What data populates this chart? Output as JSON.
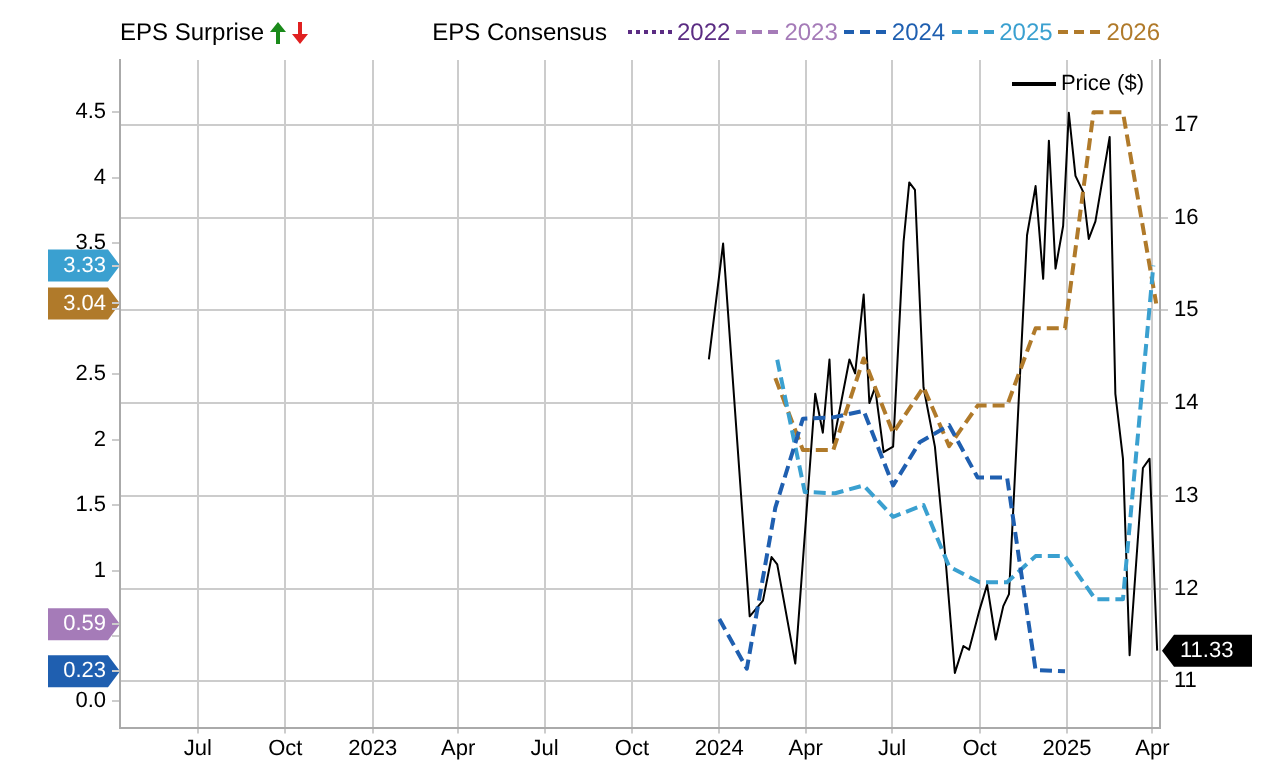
{
  "chart_data": {
    "type": "line",
    "legend_title": "EPS Consensus",
    "annotations": [
      "EPS Surprise"
    ],
    "xlim": [
      "2022-04-10",
      "2025-04-09"
    ],
    "xticks": [
      {
        "value": "2022-07-01",
        "label": "Jul"
      },
      {
        "value": "2022-10-01",
        "label": "Oct"
      },
      {
        "value": "2023-01-01",
        "label": "2023"
      },
      {
        "value": "2023-04-01",
        "label": "Apr"
      },
      {
        "value": "2023-07-01",
        "label": "Jul"
      },
      {
        "value": "2023-10-01",
        "label": "Oct"
      },
      {
        "value": "2024-01-01",
        "label": "2024"
      },
      {
        "value": "2024-04-01",
        "label": "Apr"
      },
      {
        "value": "2024-07-01",
        "label": "Jul"
      },
      {
        "value": "2024-10-01",
        "label": "Oct"
      },
      {
        "value": "2025-01-01",
        "label": "2025"
      },
      {
        "value": "2025-04-01",
        "label": "Apr"
      }
    ],
    "ylim": [
      -0.2,
      4.9
    ],
    "yticks": [
      {
        "value": 0,
        "label": "0.0"
      },
      0.23,
      {
        "value": 0.5,
        "label": null
      },
      0.59,
      1,
      1.5,
      2,
      2.5,
      {
        "value": 3,
        "label": null
      },
      3.04,
      3.33,
      3.5,
      4,
      4.5
    ],
    "y2lim": [
      10.5,
      17.7
    ],
    "y2ticks": [
      11,
      12,
      13,
      14,
      15,
      16,
      17
    ],
    "grid": true,
    "legend": "top",
    "series": [
      {
        "name": "2022",
        "color": "#5b2c83",
        "line_style": "dotted"
      },
      {
        "name": "2023",
        "color": "#a57bb8",
        "line_style": "dashed"
      },
      {
        "name": "2024",
        "color": "#1f5fb0",
        "line_style": "dashed",
        "x": [
          "2024-01-01",
          "2024-01-30",
          "2024-02-29",
          "2024-03-29",
          "2024-04-30",
          "2024-06-01",
          "2024-07-02",
          "2024-07-30",
          "2024-08-30",
          "2024-09-29",
          "2024-10-30",
          "2024-11-29",
          "2024-12-30"
        ],
        "values": [
          0.63,
          0.25,
          1.48,
          2.16,
          2.17,
          2.22,
          1.65,
          1.98,
          2.11,
          1.71,
          1.71,
          0.24,
          0.23
        ]
      },
      {
        "name": "2025",
        "color": "#3aa0d0",
        "line_style": "dashed",
        "x": [
          "2024-03-02",
          "2024-03-31",
          "2024-05-02",
          "2024-06-01",
          "2024-07-02",
          "2024-08-03",
          "2024-08-30",
          "2024-10-01",
          "2024-10-30",
          "2024-11-29",
          "2024-12-30",
          "2025-01-31",
          "2025-03-01",
          "2025-04-02"
        ],
        "values": [
          2.61,
          1.6,
          1.59,
          1.65,
          1.41,
          1.5,
          1.03,
          0.91,
          0.91,
          1.11,
          1.11,
          0.78,
          0.78,
          3.33
        ]
      },
      {
        "name": "2026",
        "color": "#b07a2a",
        "line_style": "dashed",
        "x": [
          "2024-02-29",
          "2024-03-29",
          "2024-04-30",
          "2024-06-01",
          "2024-07-02",
          "2024-08-03",
          "2024-08-30",
          "2024-09-29",
          "2024-10-30",
          "2024-11-29",
          "2024-12-30",
          "2025-01-29",
          "2025-03-01",
          "2025-04-05"
        ],
        "values": [
          2.47,
          1.92,
          1.92,
          2.62,
          2.05,
          2.4,
          1.95,
          2.26,
          2.26,
          2.85,
          2.85,
          4.5,
          4.5,
          3.04
        ]
      },
      {
        "name": "Price ($)",
        "color": "#000000",
        "line_style": "solid",
        "axis": "y2",
        "x": [
          "2023-12-21",
          "2024-01-05",
          "2024-02-02",
          "2024-02-16",
          "2024-02-25",
          "2024-03-02",
          "2024-03-21",
          "2024-04-11",
          "2024-04-19",
          "2024-04-26",
          "2024-04-30",
          "2024-05-17",
          "2024-05-23",
          "2024-06-01",
          "2024-06-07",
          "2024-06-13",
          "2024-06-22",
          "2024-07-02",
          "2024-07-13",
          "2024-07-19",
          "2024-07-25",
          "2024-08-03",
          "2024-08-15",
          "2024-08-26",
          "2024-09-05",
          "2024-09-14",
          "2024-09-20",
          "2024-10-01",
          "2024-10-09",
          "2024-10-18",
          "2024-10-26",
          "2024-11-01",
          "2024-11-20",
          "2024-11-29",
          "2024-12-07",
          "2024-12-13",
          "2024-12-20",
          "2024-12-28",
          "2025-01-03",
          "2025-01-10",
          "2025-01-18",
          "2025-01-24",
          "2025-01-31",
          "2025-02-15",
          "2025-02-21",
          "2025-03-01",
          "2025-03-08",
          "2025-03-22",
          "2025-03-29",
          "2025-04-06"
        ],
        "values": [
          14.47,
          15.72,
          11.7,
          11.87,
          12.34,
          12.26,
          11.19,
          14.1,
          13.68,
          14.47,
          13.57,
          14.47,
          14.32,
          15.17,
          14.0,
          14.17,
          13.47,
          13.53,
          15.74,
          16.38,
          16.3,
          14.17,
          13.53,
          12.34,
          11.09,
          11.38,
          11.34,
          11.77,
          12.04,
          11.45,
          11.81,
          11.94,
          15.81,
          16.34,
          15.34,
          16.83,
          15.45,
          15.91,
          17.13,
          16.45,
          16.28,
          15.77,
          15.96,
          16.87,
          14.1,
          13.4,
          11.28,
          13.3,
          13.4,
          11.33
        ],
        "value_labels": [
          null,
          null,
          null,
          null,
          null,
          null,
          null,
          null,
          null,
          null,
          null,
          null,
          null,
          null,
          null,
          null,
          null,
          null,
          null,
          null,
          null,
          null,
          null,
          null,
          null,
          null,
          null,
          null,
          null,
          null,
          null,
          null,
          null,
          null,
          null,
          null,
          null,
          null,
          null,
          null,
          null,
          null,
          null,
          null,
          null,
          null,
          null,
          null,
          null,
          "11.33"
        ]
      }
    ]
  }
}
